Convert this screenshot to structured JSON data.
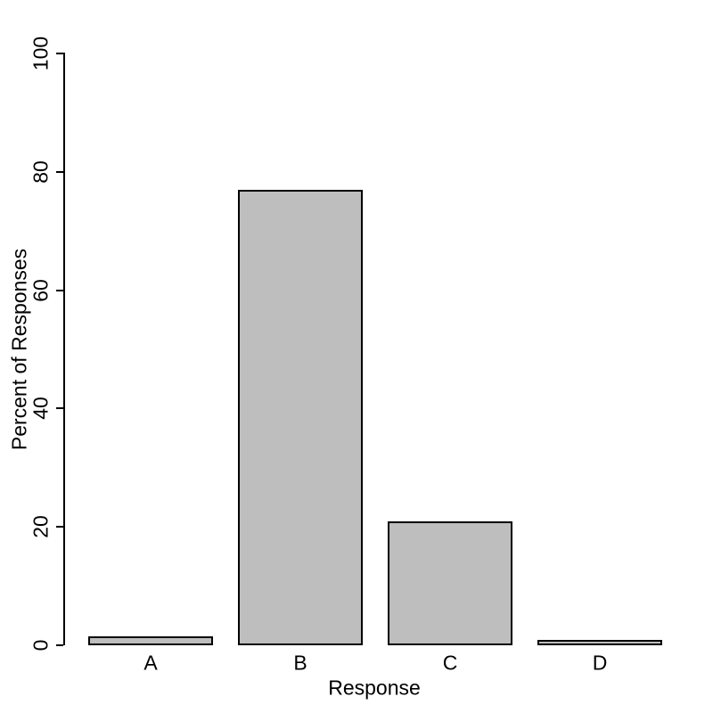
{
  "chart_data": {
    "type": "bar",
    "categories": [
      "A",
      "B",
      "C",
      "D"
    ],
    "values": [
      1.5,
      76.9,
      21,
      0.9
    ],
    "xlabel": "Response",
    "ylabel": "Percent of Responses",
    "ylim": [
      0,
      100
    ],
    "yticks": [
      0,
      20,
      40,
      60,
      80,
      100
    ],
    "grid": false,
    "legend": "none",
    "colors": {
      "bar_fill": "#BEBEBE",
      "bar_border": "#000000",
      "axis": "#000000",
      "text": "#000000",
      "background": "#FFFFFF"
    }
  }
}
